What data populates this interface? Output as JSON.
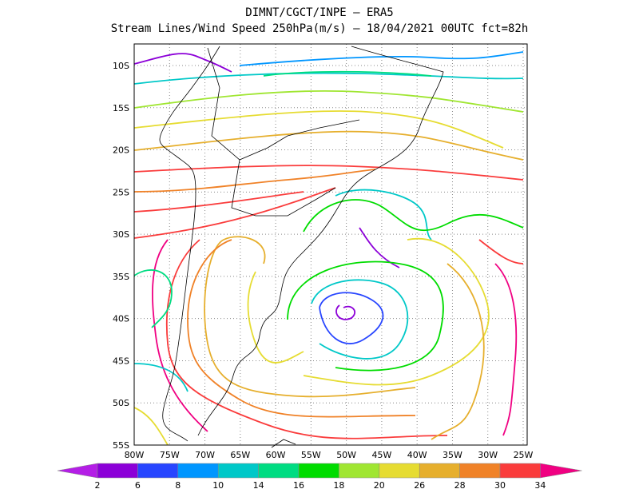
{
  "header": {
    "title": "DIMNT/CGCT/INPE –  ERA5",
    "subtitle": "Stream Lines/Wind Speed 250hPa(m/s) –  18/04/2021 00UTC fct=82h"
  },
  "map": {
    "lat_labels": [
      "10S",
      "15S",
      "20S",
      "25S",
      "30S",
      "35S",
      "40S",
      "45S",
      "50S",
      "55S"
    ],
    "lon_labels": [
      "80W",
      "75W",
      "70W",
      "65W",
      "60W",
      "55W",
      "50W",
      "45W",
      "40W",
      "35W",
      "30W",
      "25W"
    ]
  },
  "colorbar": {
    "labels": [
      2,
      6,
      8,
      10,
      14,
      16,
      18,
      20,
      26,
      28,
      30,
      34
    ],
    "colors": [
      "#b41ee6",
      "#8c00d8",
      "#2846ff",
      "#0096ff",
      "#00c8c8",
      "#00dc82",
      "#00dc00",
      "#a0e632",
      "#e6dc32",
      "#e6af2d",
      "#f08228",
      "#fa3c3c",
      "#f00082"
    ]
  }
}
